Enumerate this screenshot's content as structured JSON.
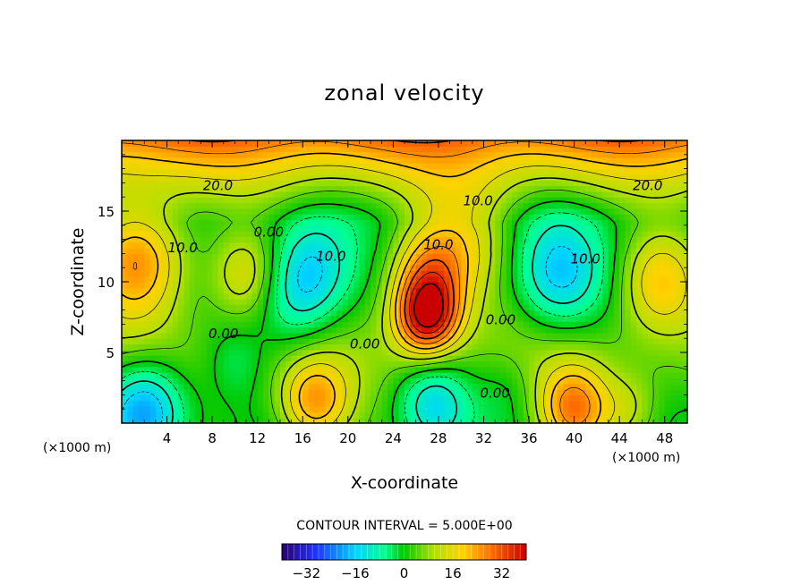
{
  "chart_data": {
    "type": "heatmap",
    "title": "zonal velocity",
    "xlabel": "X-coordinate",
    "ylabel": "Z-coordinate",
    "x_unit": "(×1000 m)",
    "x_ticks": [
      4,
      8,
      12,
      16,
      20,
      24,
      28,
      32,
      36,
      40,
      44,
      48
    ],
    "y_ticks": [
      5,
      10,
      15
    ],
    "xlim": [
      0,
      50
    ],
    "ylim": [
      0,
      20
    ],
    "contour_interval_text": "CONTOUR INTERVAL = 5.000E+00",
    "contour_interval": 5,
    "contour_labels": [
      {
        "text": "20.0",
        "x": 8.5,
        "z": 16.5
      },
      {
        "text": "20.0",
        "x": 46.5,
        "z": 16.5
      },
      {
        "text": "10.0",
        "x": 31.5,
        "z": 15.4
      },
      {
        "text": "10.0",
        "x": 28,
        "z": 12.3
      },
      {
        "text": "10.0",
        "x": 5.4,
        "z": 12.1
      },
      {
        "text": "10.0",
        "x": 18.5,
        "z": 11.5
      },
      {
        "text": "10.0",
        "x": 41,
        "z": 11.3
      },
      {
        "text": "0.00",
        "x": 13,
        "z": 13.2
      },
      {
        "text": "0.00",
        "x": 9,
        "z": 6
      },
      {
        "text": "0.00",
        "x": 21.5,
        "z": 5.3
      },
      {
        "text": "0.00",
        "x": 33.5,
        "z": 7
      },
      {
        "text": "0.00",
        "x": 33,
        "z": 1.8
      }
    ],
    "colorbar": {
      "ticks": [
        -32,
        -16,
        0,
        16,
        32
      ],
      "range": [
        -40,
        40
      ],
      "colormap": [
        "#2a006e",
        "#1f33ff",
        "#00d5ff",
        "#00ff90",
        "#00c800",
        "#b0e000",
        "#ffd200",
        "#ff6a00",
        "#c80000"
      ]
    },
    "features": [
      {
        "x": 1.5,
        "z": 11.5,
        "value": 25,
        "spread": 3
      },
      {
        "x": 11,
        "z": 10.5,
        "value": 15,
        "spread": 2.2
      },
      {
        "x": 15.5,
        "z": 9,
        "value": -15,
        "spread": 2.8
      },
      {
        "x": 17,
        "z": 11.5,
        "value": -9,
        "spread": 2.5
      },
      {
        "x": 27,
        "z": 7.5,
        "value": 33,
        "spread": 2.0
      },
      {
        "x": 27,
        "z": 10.5,
        "value": 20,
        "spread": 2.5
      },
      {
        "x": 38.5,
        "z": 10.5,
        "value": -17,
        "spread": 2.8
      },
      {
        "x": 47.5,
        "z": 10,
        "value": 18,
        "spread": 2.5
      },
      {
        "x": 30,
        "z": 13,
        "value": 12,
        "spread": 3
      },
      {
        "x": 17,
        "z": 1.5,
        "value": 22,
        "spread": 2.2
      },
      {
        "x": 27.5,
        "z": 1.5,
        "value": -16,
        "spread": 2.2
      },
      {
        "x": 40,
        "z": 1.0,
        "value": 24,
        "spread": 2.2
      },
      {
        "x": 2,
        "z": 1.0,
        "value": -24,
        "spread": 2.5
      },
      {
        "x": 10,
        "z": 4.5,
        "value": -6,
        "spread": 1.8
      },
      {
        "x": 34,
        "z": 2.5,
        "value": -4,
        "spread": 1.8
      },
      {
        "x": 45,
        "z": 1.0,
        "value": 8,
        "spread": 1.8
      }
    ]
  }
}
